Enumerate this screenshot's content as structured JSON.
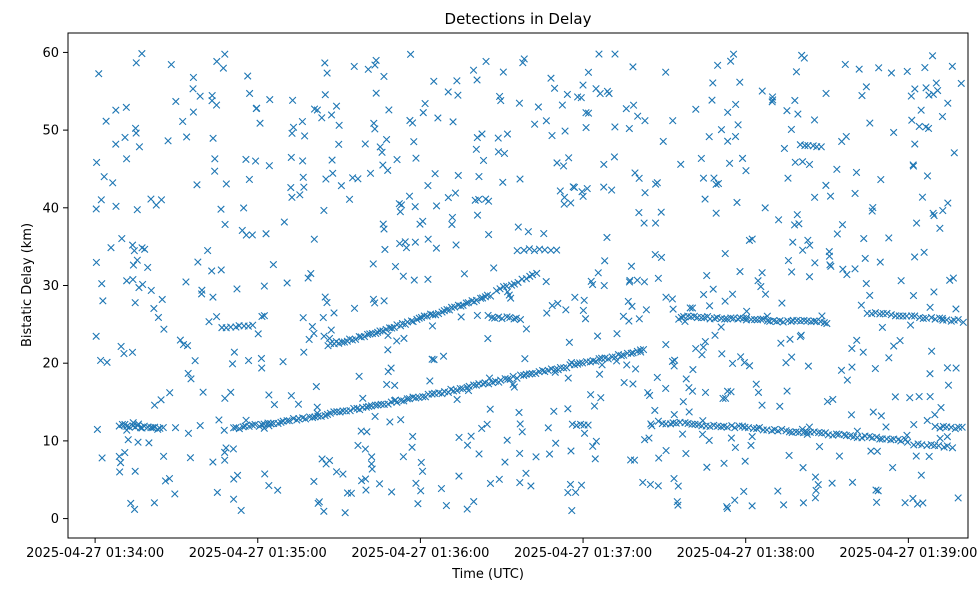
{
  "chart_data": {
    "type": "scatter",
    "title": "Detections in Delay",
    "xlabel": "Time (UTC)",
    "ylabel": "Bistatic Delay (km)",
    "x_unit": "seconds since 2025-04-27 01:34:00 UTC",
    "xlim": [
      -10,
      322
    ],
    "ylim": [
      -2.5,
      62.5
    ],
    "marker": "x",
    "color": "#1f77b4",
    "x_ticks": [
      {
        "value": 0,
        "label": "2025-04-27 01:34:00"
      },
      {
        "value": 60,
        "label": "2025-04-27 01:35:00"
      },
      {
        "value": 120,
        "label": "2025-04-27 01:36:00"
      },
      {
        "value": 180,
        "label": "2025-04-27 01:37:00"
      },
      {
        "value": 240,
        "label": "2025-04-27 01:38:00"
      },
      {
        "value": 300,
        "label": "2025-04-27 01:39:00"
      }
    ],
    "y_ticks": [
      {
        "value": 0,
        "label": "0"
      },
      {
        "value": 10,
        "label": "10"
      },
      {
        "value": 20,
        "label": "20"
      },
      {
        "value": 30,
        "label": "30"
      },
      {
        "value": 40,
        "label": "40"
      },
      {
        "value": 50,
        "label": "50"
      },
      {
        "value": 60,
        "label": "60"
      }
    ],
    "tracks": [
      {
        "name": "low-constant-start",
        "x_start": 9,
        "x_end": 25,
        "y_start": 12.0,
        "y_end": 11.6,
        "count": 18
      },
      {
        "name": "rising-lower",
        "x_start": 51,
        "x_end": 201,
        "y_start": 11.6,
        "y_end": 21.6,
        "count": 130
      },
      {
        "name": "rising-upper",
        "x_start": 86,
        "x_end": 146,
        "y_start": 22.4,
        "y_end": 28.8,
        "count": 60
      },
      {
        "name": "track-26-mid",
        "x_start": 145,
        "x_end": 157,
        "y_start": 26.0,
        "y_end": 25.6,
        "count": 10
      },
      {
        "name": "track-31-rise",
        "x_start": 148,
        "x_end": 163,
        "y_start": 29.5,
        "y_end": 31.6,
        "count": 12
      },
      {
        "name": "track-34-mid",
        "x_start": 156,
        "x_end": 170,
        "y_start": 34.6,
        "y_end": 34.6,
        "count": 8
      },
      {
        "name": "track-25-start",
        "x_start": 47,
        "x_end": 58,
        "y_start": 24.6,
        "y_end": 24.8,
        "count": 8
      },
      {
        "name": "track-26-late",
        "x_start": 216,
        "x_end": 270,
        "y_start": 26.0,
        "y_end": 25.2,
        "count": 45
      },
      {
        "name": "track-26-end",
        "x_start": 285,
        "x_end": 320,
        "y_start": 26.4,
        "y_end": 25.4,
        "count": 25
      },
      {
        "name": "track-12-late",
        "x_start": 208,
        "x_end": 300,
        "y_start": 12.4,
        "y_end": 10.0,
        "count": 70
      },
      {
        "name": "track-9-end",
        "x_start": 302,
        "x_end": 316,
        "y_start": 9.6,
        "y_end": 9.2,
        "count": 10
      },
      {
        "name": "track-12-end",
        "x_start": 310,
        "x_end": 320,
        "y_start": 11.8,
        "y_end": 11.6,
        "count": 8
      },
      {
        "name": "track-48-mid",
        "x_start": 260,
        "x_end": 268,
        "y_start": 48.0,
        "y_end": 47.8,
        "count": 6
      },
      {
        "name": "track-12-mid",
        "x_start": 176,
        "x_end": 182,
        "y_start": 12.2,
        "y_end": 12.0,
        "count": 5
      }
    ],
    "scatter_noise": {
      "x_range": [
        0,
        320
      ],
      "y_range": [
        0.5,
        60
      ],
      "count": 820,
      "seed": 20250427
    }
  }
}
